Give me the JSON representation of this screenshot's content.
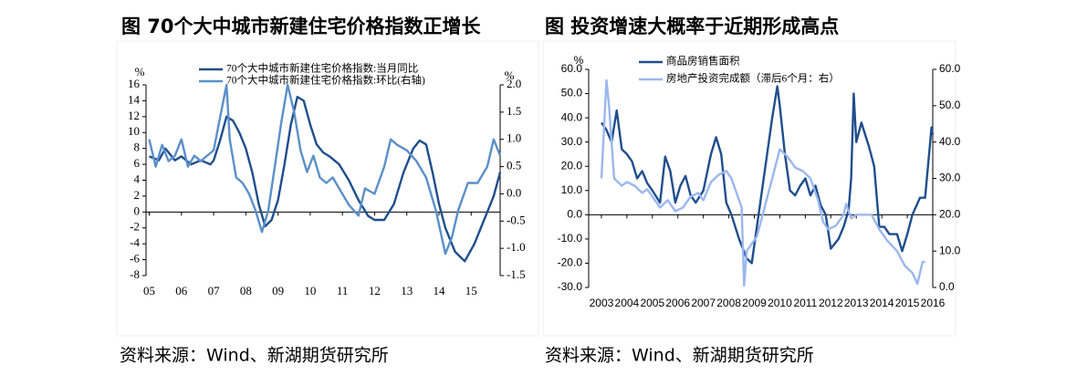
{
  "chart_data": [
    {
      "type": "line",
      "title": "图 70个大中城市新建住宅价格指数正增长",
      "source": "资料来源：Wind、新湖期货研究所",
      "y_unit": "%",
      "y2_unit": "%",
      "xlim": [
        4.9,
        15.9
      ],
      "xticks": [
        {
          "value": 5,
          "label": "05"
        },
        {
          "value": 6,
          "label": "06"
        },
        {
          "value": 7,
          "label": "07"
        },
        {
          "value": 8,
          "label": "08"
        },
        {
          "value": 9,
          "label": "09"
        },
        {
          "value": 10,
          "label": "10"
        },
        {
          "value": 11,
          "label": "11"
        },
        {
          "value": 12,
          "label": "12"
        },
        {
          "value": 13,
          "label": "13"
        },
        {
          "value": 14,
          "label": "14"
        },
        {
          "value": 15,
          "label": "15"
        }
      ],
      "ylim": [
        -8,
        16
      ],
      "yticks": [
        -8,
        -6,
        -4,
        -2,
        0,
        2,
        4,
        6,
        8,
        10,
        12,
        14,
        16
      ],
      "y2lim": [
        -1.5,
        2.0
      ],
      "y2ticks": [
        -1.5,
        {
          "value": -1.0,
          "label": "-1.0"
        },
        -0.5,
        {
          "value": 0,
          "label": "0.0"
        },
        0.5,
        {
          "value": 1.0,
          "label": "1.0"
        },
        1.5,
        {
          "value": 2.0,
          "label": "2.0"
        }
      ],
      "series": [
        {
          "name": "70个大中城市新建住宅价格指数:当月同比",
          "color": "#1f4e8c",
          "x": [
            5.0,
            5.3,
            5.5,
            5.8,
            6.0,
            6.3,
            6.6,
            6.9,
            7.0,
            7.2,
            7.4,
            7.6,
            7.8,
            8.0,
            8.2,
            8.4,
            8.6,
            8.8,
            9.0,
            9.2,
            9.4,
            9.6,
            9.8,
            10.0,
            10.2,
            10.4,
            10.6,
            10.9,
            11.2,
            11.5,
            11.8,
            12.0,
            12.3,
            12.6,
            12.9,
            13.2,
            13.4,
            13.6,
            13.8,
            14.0,
            14.2,
            14.5,
            14.8,
            15.1,
            15.4,
            15.7,
            15.9
          ],
          "values": [
            7,
            6.5,
            8,
            6.5,
            7,
            6,
            6.5,
            6,
            6.5,
            9,
            12,
            11.5,
            10,
            8,
            5,
            1,
            -1.8,
            -1,
            1.5,
            6,
            11,
            14.5,
            14,
            11,
            8.5,
            7.5,
            7,
            6,
            4,
            1.5,
            -0.5,
            -1,
            -1,
            1,
            5,
            8,
            9,
            8.5,
            5,
            1,
            -2,
            -5,
            -6.2,
            -4,
            -1,
            2,
            5
          ]
        },
        {
          "name": "70个大中城市新建住宅价格指数:环比(右轴)",
          "color": "#5b8fc9",
          "axis": "y2",
          "x": [
            5.0,
            5.2,
            5.4,
            5.6,
            5.8,
            6.0,
            6.2,
            6.4,
            6.6,
            6.8,
            7.0,
            7.2,
            7.4,
            7.5,
            7.7,
            7.9,
            8.1,
            8.3,
            8.5,
            8.7,
            8.9,
            9.1,
            9.3,
            9.5,
            9.7,
            9.9,
            10.1,
            10.3,
            10.5,
            10.7,
            10.9,
            11.2,
            11.5,
            11.7,
            12.0,
            12.3,
            12.5,
            12.7,
            13.0,
            13.3,
            13.6,
            13.9,
            14.2,
            14.4,
            14.6,
            14.9,
            15.2,
            15.5,
            15.7,
            15.9
          ],
          "values": [
            1.0,
            0.5,
            0.9,
            0.6,
            0.7,
            1.0,
            0.5,
            0.7,
            0.6,
            0.7,
            0.8,
            1.4,
            2.0,
            1.0,
            0.3,
            0.2,
            0.0,
            -0.3,
            -0.7,
            -0.3,
            0.5,
            1.3,
            2.0,
            1.5,
            0.8,
            0.4,
            0.7,
            0.3,
            0.2,
            0.3,
            0.1,
            -0.2,
            -0.4,
            0.1,
            0.0,
            0.5,
            1.0,
            0.9,
            0.8,
            0.6,
            0.3,
            -0.3,
            -1.1,
            -0.8,
            -0.3,
            0.2,
            0.2,
            0.5,
            1.0,
            0.7
          ]
        }
      ]
    },
    {
      "type": "line",
      "title": "图 投资增速大概率于近期形成高点",
      "source": "资料来源：Wind、新湖期货研究所",
      "y_unit": "%",
      "xlim": [
        2002.5,
        2016
      ],
      "xticks": [
        2003,
        2004,
        2005,
        2006,
        2007,
        2008,
        2009,
        2010,
        2011,
        2012,
        2013,
        2014,
        2015,
        2016
      ],
      "ylim": [
        -30,
        60
      ],
      "yticks": [
        {
          "value": -30,
          "label": "-30.0"
        },
        {
          "value": -20,
          "label": "-20.0"
        },
        {
          "value": -10,
          "label": "-10.0"
        },
        {
          "value": 0,
          "label": "0.0"
        },
        {
          "value": 10,
          "label": "10.0"
        },
        {
          "value": 20,
          "label": "20.0"
        },
        {
          "value": 30,
          "label": "30.0"
        },
        {
          "value": 40,
          "label": "40.0"
        },
        {
          "value": 50,
          "label": "50.0"
        },
        {
          "value": 60,
          "label": "60.0"
        }
      ],
      "y2lim": [
        0,
        60
      ],
      "y2ticks": [
        {
          "value": 0,
          "label": "0.0"
        },
        {
          "value": 10,
          "label": "10.0"
        },
        {
          "value": 20,
          "label": "20.0"
        },
        {
          "value": 30,
          "label": "30.0"
        },
        {
          "value": 40,
          "label": "40.0"
        },
        {
          "value": 50,
          "label": "50.0"
        },
        {
          "value": 60,
          "label": "60.0"
        }
      ],
      "series": [
        {
          "name": "商品房销售面积",
          "color": "#1f4e8c",
          "x": [
            2003.0,
            2003.2,
            2003.4,
            2003.6,
            2003.8,
            2004.0,
            2004.2,
            2004.4,
            2004.6,
            2004.8,
            2005.0,
            2005.3,
            2005.5,
            2005.7,
            2005.9,
            2006.1,
            2006.3,
            2006.5,
            2006.7,
            2007.0,
            2007.3,
            2007.5,
            2007.7,
            2007.9,
            2008.1,
            2008.4,
            2008.7,
            2008.9,
            2009.1,
            2009.3,
            2009.5,
            2009.7,
            2009.9,
            2010.0,
            2010.2,
            2010.4,
            2010.6,
            2010.8,
            2011.0,
            2011.2,
            2011.4,
            2011.6,
            2011.8,
            2012.0,
            2012.3,
            2012.5,
            2012.7,
            2012.8,
            2012.9,
            2013.0,
            2013.2,
            2013.5,
            2013.7,
            2013.9,
            2014.1,
            2014.3,
            2014.6,
            2014.8,
            2015.0,
            2015.2,
            2015.5,
            2015.7,
            2015.9,
            2015.95,
            2016.0
          ],
          "values": [
            38,
            35,
            30,
            43,
            27,
            25,
            22,
            15,
            18,
            13,
            10,
            5,
            24,
            18,
            5,
            12,
            16,
            8,
            5,
            10,
            25,
            32,
            25,
            5,
            0,
            -10,
            -18,
            -20,
            -5,
            10,
            25,
            40,
            53,
            45,
            25,
            10,
            8,
            12,
            15,
            8,
            12,
            4,
            0,
            -14,
            -10,
            -5,
            2,
            15,
            50,
            30,
            38,
            28,
            20,
            -5,
            -5,
            -8,
            -8,
            -15,
            -8,
            0,
            7,
            7,
            30,
            36,
            33
          ]
        },
        {
          "name": "房地产投资完成额（滞后6个月：右）",
          "color": "#9bb7ef",
          "axis": "y2",
          "x": [
            2003.0,
            2003.2,
            2003.3,
            2003.5,
            2003.8,
            2004.0,
            2004.3,
            2004.6,
            2004.8,
            2005.0,
            2005.3,
            2005.6,
            2005.9,
            2006.2,
            2006.5,
            2006.8,
            2007.0,
            2007.3,
            2007.6,
            2007.9,
            2008.1,
            2008.3,
            2008.5,
            2008.6,
            2008.7,
            2008.9,
            2009.1,
            2009.4,
            2009.7,
            2010.0,
            2010.3,
            2010.6,
            2010.9,
            2011.2,
            2011.5,
            2011.7,
            2011.9,
            2012.2,
            2012.5,
            2012.6,
            2012.8,
            2013.0,
            2013.3,
            2013.6,
            2013.9,
            2014.2,
            2014.6,
            2014.9,
            2015.2,
            2015.4,
            2015.6,
            2015.7
          ],
          "values": [
            30,
            57,
            50,
            30,
            28,
            29,
            28,
            26,
            27,
            25,
            22,
            24,
            21,
            22,
            25,
            26,
            24,
            29,
            31,
            32,
            30,
            26,
            22,
            0.5,
            10,
            12,
            14,
            22,
            30,
            38,
            36,
            33,
            32,
            30,
            24,
            18,
            16,
            17,
            20,
            23,
            19,
            20,
            20,
            20,
            16,
            13,
            10,
            6,
            4,
            1,
            7,
            7
          ]
        }
      ]
    }
  ]
}
